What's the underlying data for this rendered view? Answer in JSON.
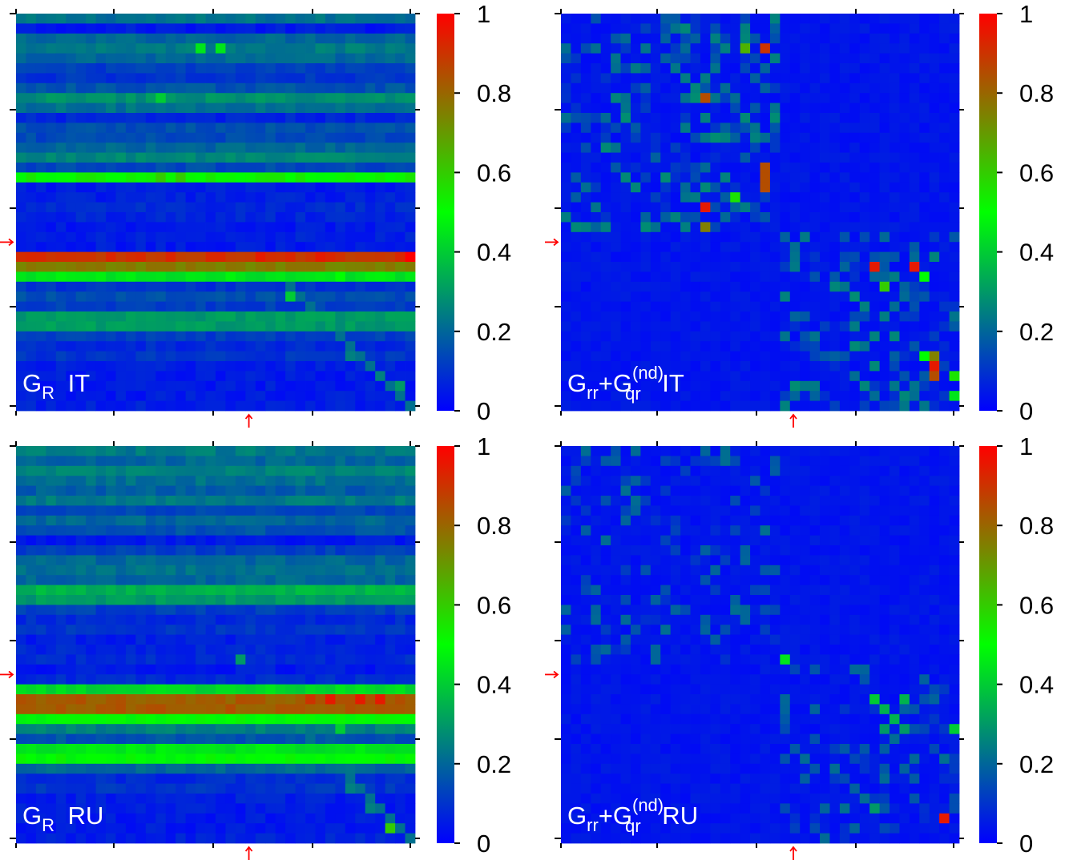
{
  "chart_data": [
    {
      "type": "heatmap",
      "panel": "top-left",
      "label": {
        "main": "G",
        "sub": "R",
        "sup": "",
        "main2": "",
        "sub2": "",
        "suffix": "IT"
      },
      "matrix_size": 40,
      "colorbar": {
        "ticks": [
          0,
          0.2,
          0.4,
          0.6,
          0.8,
          1
        ],
        "tick_labels": [
          "0",
          "0.2",
          "0.4",
          "0.6",
          "0.8",
          "1"
        ],
        "colors": [
          "#0000ff",
          "#00ff00",
          "#ff0000"
        ]
      },
      "marker_index": 23,
      "row_levels": [
        0.22,
        0.05,
        0.2,
        0.24,
        0.2,
        0.12,
        0.1,
        0.16,
        0.28,
        0.22,
        0.07,
        0.15,
        0.14,
        0.2,
        0.26,
        0.14,
        0.52,
        0.05,
        0.06,
        0.08,
        0.07,
        0.05,
        0.06,
        0.05,
        0.9,
        0.75,
        0.45,
        0.1,
        0.15,
        0.12,
        0.3,
        0.3,
        0.12,
        0.08,
        0.1,
        0.06,
        0.05,
        0.05,
        0.05,
        0.06
      ],
      "peak_cells": [
        [
          24,
          39,
          1.0
        ],
        [
          24,
          24,
          0.95
        ],
        [
          24,
          30,
          0.95
        ],
        [
          3,
          18,
          0.45
        ],
        [
          3,
          20,
          0.45
        ],
        [
          8,
          14,
          0.4
        ],
        [
          16,
          14,
          0.6
        ],
        [
          16,
          16,
          0.6
        ],
        [
          26,
          32,
          0.5
        ],
        [
          28,
          27,
          0.4
        ],
        [
          34,
          33,
          0.25
        ],
        [
          36,
          36,
          0.25
        ],
        [
          37,
          38,
          0.3
        ]
      ]
    },
    {
      "type": "heatmap",
      "panel": "top-right",
      "label": {
        "main": "G",
        "sub": "rr",
        "sup": "",
        "main2": "+G",
        "sub2": "qr",
        "sup2": "(nd)",
        "suffix": "IT"
      },
      "matrix_size": 40,
      "colorbar": {
        "ticks": [
          0,
          0.2,
          0.4,
          0.6,
          0.8,
          1
        ],
        "tick_labels": [
          "0",
          "0.2",
          "0.4",
          "0.6",
          "0.8",
          "1"
        ],
        "colors": [
          "#0000ff",
          "#00ff00",
          "#ff0000"
        ]
      },
      "marker_index": 23,
      "block_structure": {
        "blocks": [
          [
            0,
            21
          ],
          [
            22,
            39
          ]
        ],
        "in_block_density": 0.35,
        "in_block_level": 0.2
      },
      "peak_cells": [
        [
          3,
          20,
          0.9
        ],
        [
          8,
          14,
          0.85
        ],
        [
          15,
          20,
          0.85
        ],
        [
          16,
          20,
          0.85
        ],
        [
          17,
          20,
          0.85
        ],
        [
          19,
          14,
          0.95
        ],
        [
          21,
          14,
          0.75
        ],
        [
          3,
          18,
          0.65
        ],
        [
          18,
          17,
          0.55
        ],
        [
          25,
          31,
          0.95
        ],
        [
          25,
          35,
          0.95
        ],
        [
          27,
          32,
          0.6
        ],
        [
          26,
          36,
          0.5
        ],
        [
          34,
          36,
          0.5
        ],
        [
          34,
          37,
          0.75
        ],
        [
          35,
          37,
          0.95
        ],
        [
          36,
          37,
          0.85
        ],
        [
          36,
          39,
          0.55
        ],
        [
          38,
          39,
          0.45
        ]
      ]
    },
    {
      "type": "heatmap",
      "panel": "bottom-left",
      "label": {
        "main": "G",
        "sub": "R",
        "sup": "",
        "main2": "",
        "sub2": "",
        "suffix": "RU"
      },
      "matrix_size": 40,
      "colorbar": {
        "ticks": [
          0,
          0.2,
          0.4,
          0.6,
          0.8,
          1
        ],
        "tick_labels": [
          "0",
          "0.2",
          "0.4",
          "0.6",
          "0.8",
          "1"
        ],
        "colors": [
          "#0000ff",
          "#00ff00",
          "#ff0000"
        ]
      },
      "marker_index": 23,
      "row_levels": [
        0.24,
        0.2,
        0.26,
        0.22,
        0.18,
        0.24,
        0.14,
        0.2,
        0.16,
        0.05,
        0.12,
        0.2,
        0.22,
        0.2,
        0.35,
        0.3,
        0.12,
        0.08,
        0.1,
        0.06,
        0.07,
        0.08,
        0.05,
        0.08,
        0.42,
        0.82,
        0.82,
        0.5,
        0.25,
        0.16,
        0.45,
        0.5,
        0.2,
        0.08,
        0.1,
        0.06,
        0.05,
        0.05,
        0.05,
        0.06
      ],
      "peak_cells": [
        [
          25,
          31,
          0.95
        ],
        [
          25,
          34,
          0.95
        ],
        [
          25,
          36,
          0.95
        ],
        [
          25,
          29,
          0.9
        ],
        [
          21,
          22,
          0.3
        ],
        [
          28,
          32,
          0.4
        ],
        [
          38,
          37,
          0.6
        ],
        [
          34,
          33,
          0.25
        ],
        [
          36,
          35,
          0.25
        ]
      ]
    },
    {
      "type": "heatmap",
      "panel": "bottom-right",
      "label": {
        "main": "G",
        "sub": "rr",
        "sup": "",
        "main2": "+G",
        "sub2": "qr",
        "sup2": "(nd)",
        "suffix": "RU"
      },
      "matrix_size": 40,
      "colorbar": {
        "ticks": [
          0,
          0.2,
          0.4,
          0.6,
          0.8,
          1
        ],
        "tick_labels": [
          "0",
          "0.2",
          "0.4",
          "0.6",
          "0.8",
          "1"
        ],
        "colors": [
          "#0000ff",
          "#00ff00",
          "#ff0000"
        ]
      },
      "marker_index": 23,
      "block_structure": {
        "blocks": [
          [
            0,
            21
          ],
          [
            22,
            39
          ]
        ],
        "in_block_density": 0.22,
        "in_block_level": 0.14
      },
      "peak_cells": [
        [
          21,
          22,
          0.45
        ],
        [
          25,
          31,
          0.4
        ],
        [
          25,
          34,
          0.35
        ],
        [
          26,
          32,
          0.35
        ],
        [
          27,
          33,
          0.35
        ],
        [
          28,
          34,
          0.3
        ],
        [
          28,
          32,
          0.3
        ],
        [
          28,
          39,
          0.4
        ],
        [
          37,
          38,
          0.95
        ],
        [
          36,
          31,
          0.3
        ]
      ]
    }
  ]
}
